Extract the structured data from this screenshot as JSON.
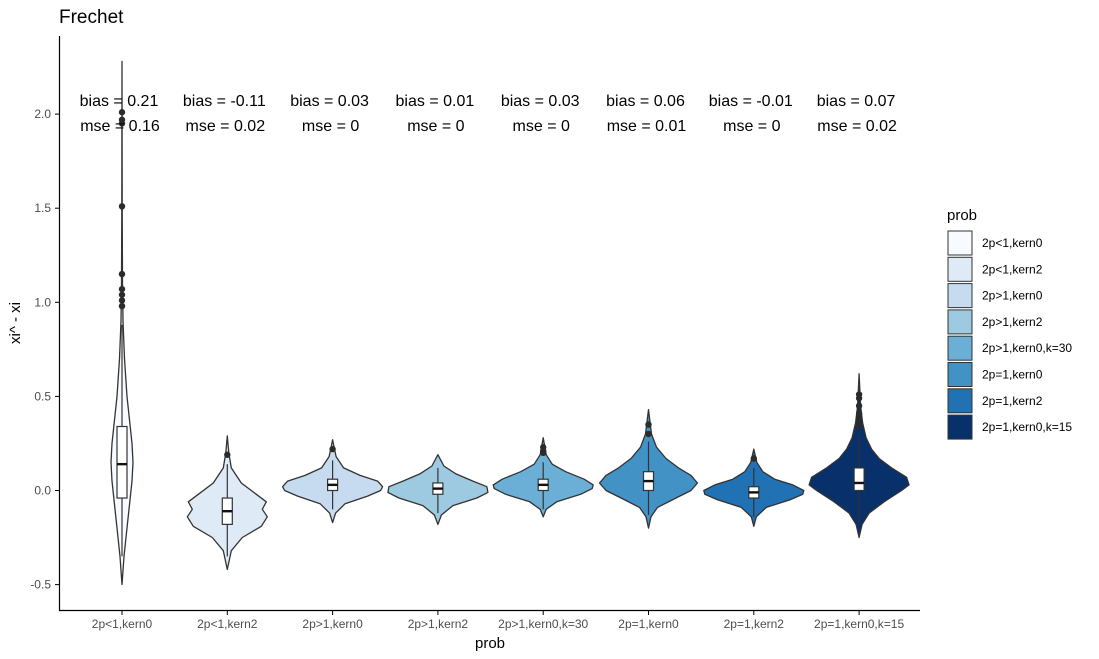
{
  "chart_data": {
    "type": "violin",
    "title": "Frechet",
    "xlabel": "prob",
    "ylabel": "xi^ - xi",
    "ylim": [
      -0.56,
      2.4
    ],
    "yticks": [
      -0.5,
      0.0,
      0.5,
      1.0,
      1.5,
      2.0
    ],
    "ytick_labels": [
      "-0.5",
      "0.0",
      "0.5",
      "1.0",
      "1.5",
      "2.0"
    ],
    "categories": [
      "2p<1,kern0",
      "2p<1,kern2",
      "2p>1,kern0",
      "2p>1,kern2",
      "2p>1,kern0,k=30",
      "2p=1,kern0",
      "2p=1,kern2",
      "2p=1,kern0,k=15"
    ],
    "fills": [
      "#F7FBFF",
      "#DEEBF7",
      "#C6DBEF",
      "#9ECAE1",
      "#6BAED6",
      "#4292C6",
      "#2171B5",
      "#08306B"
    ],
    "bias_labels": [
      "bias = 0.21",
      "bias = -0.11",
      "bias = 0.03",
      "bias = 0.01",
      "bias = 0.03",
      "bias = 0.06",
      "bias = -0.01",
      "bias = 0.07"
    ],
    "mse_labels": [
      "mse = 0.16",
      "mse = 0.02",
      "mse = 0",
      "mse = 0",
      "mse = 0",
      "mse = 0.01",
      "mse = 0",
      "mse = 0.02"
    ],
    "series": [
      {
        "name": "2p<1,kern0",
        "min": -0.5,
        "max": 2.28,
        "q1": -0.04,
        "median": 0.14,
        "q3": 0.34,
        "whisker_low": -0.35,
        "whisker_high": 0.88,
        "outliers": [
          0.98,
          1.01,
          1.04,
          1.07,
          1.15,
          1.51,
          1.95,
          1.97,
          2.01
        ],
        "density": [
          [
            -0.5,
            0
          ],
          [
            -0.35,
            0.04
          ],
          [
            -0.2,
            0.1
          ],
          [
            -0.05,
            0.16
          ],
          [
            0.05,
            0.2
          ],
          [
            0.15,
            0.22
          ],
          [
            0.25,
            0.2
          ],
          [
            0.35,
            0.16
          ],
          [
            0.5,
            0.1
          ],
          [
            0.7,
            0.05
          ],
          [
            0.9,
            0.02
          ],
          [
            1.1,
            0.01
          ],
          [
            1.5,
            0.004
          ],
          [
            2.28,
            0
          ]
        ]
      },
      {
        "name": "2p<1,kern2",
        "min": -0.42,
        "max": 0.29,
        "q1": -0.18,
        "median": -0.11,
        "q3": -0.04,
        "whisker_low": -0.35,
        "whisker_high": 0.14,
        "outliers": [
          0.19
        ],
        "density": [
          [
            -0.42,
            0
          ],
          [
            -0.32,
            0.08
          ],
          [
            -0.25,
            0.3
          ],
          [
            -0.19,
            0.68
          ],
          [
            -0.14,
            0.8
          ],
          [
            -0.1,
            0.7
          ],
          [
            -0.06,
            0.78
          ],
          [
            -0.02,
            0.58
          ],
          [
            0.04,
            0.28
          ],
          [
            0.12,
            0.08
          ],
          [
            0.2,
            0.03
          ],
          [
            0.29,
            0
          ]
        ]
      },
      {
        "name": "2p>1,kern0",
        "min": -0.17,
        "max": 0.27,
        "q1": 0.0,
        "median": 0.03,
        "q3": 0.06,
        "whisker_low": -0.1,
        "whisker_high": 0.16,
        "outliers": [
          0.22
        ],
        "density": [
          [
            -0.17,
            0
          ],
          [
            -0.12,
            0.06
          ],
          [
            -0.07,
            0.25
          ],
          [
            -0.03,
            0.7
          ],
          [
            0.0,
            0.96
          ],
          [
            0.02,
            1.0
          ],
          [
            0.05,
            0.9
          ],
          [
            0.08,
            0.55
          ],
          [
            0.12,
            0.22
          ],
          [
            0.18,
            0.07
          ],
          [
            0.23,
            0.03
          ],
          [
            0.27,
            0
          ]
        ]
      },
      {
        "name": "2p>1,kern2",
        "min": -0.18,
        "max": 0.19,
        "q1": -0.02,
        "median": 0.01,
        "q3": 0.04,
        "whisker_low": -0.12,
        "whisker_high": 0.12,
        "outliers": [],
        "density": [
          [
            -0.18,
            0
          ],
          [
            -0.13,
            0.07
          ],
          [
            -0.08,
            0.3
          ],
          [
            -0.04,
            0.78
          ],
          [
            -0.01,
            1.0
          ],
          [
            0.02,
            0.98
          ],
          [
            0.05,
            0.7
          ],
          [
            0.09,
            0.35
          ],
          [
            0.13,
            0.12
          ],
          [
            0.19,
            0
          ]
        ]
      },
      {
        "name": "2p>1,kern0,k=30",
        "min": -0.14,
        "max": 0.28,
        "q1": 0.0,
        "median": 0.03,
        "q3": 0.06,
        "whisker_low": -0.1,
        "whisker_high": 0.15,
        "outliers": [
          0.2,
          0.21,
          0.23
        ],
        "density": [
          [
            -0.14,
            0
          ],
          [
            -0.1,
            0.06
          ],
          [
            -0.06,
            0.27
          ],
          [
            -0.02,
            0.75
          ],
          [
            0.01,
            0.98
          ],
          [
            0.03,
            1.0
          ],
          [
            0.06,
            0.82
          ],
          [
            0.1,
            0.45
          ],
          [
            0.14,
            0.18
          ],
          [
            0.19,
            0.06
          ],
          [
            0.28,
            0
          ]
        ]
      },
      {
        "name": "2p=1,kern0",
        "min": -0.2,
        "max": 0.43,
        "q1": 0.0,
        "median": 0.05,
        "q3": 0.1,
        "whisker_low": -0.13,
        "whisker_high": 0.26,
        "outliers": [
          0.3,
          0.35
        ],
        "density": [
          [
            -0.2,
            0
          ],
          [
            -0.14,
            0.05
          ],
          [
            -0.09,
            0.18
          ],
          [
            -0.04,
            0.55
          ],
          [
            0.0,
            0.85
          ],
          [
            0.04,
            0.98
          ],
          [
            0.08,
            0.85
          ],
          [
            0.12,
            0.6
          ],
          [
            0.17,
            0.35
          ],
          [
            0.23,
            0.16
          ],
          [
            0.3,
            0.06
          ],
          [
            0.43,
            0
          ]
        ]
      },
      {
        "name": "2p=1,kern2",
        "min": -0.19,
        "max": 0.22,
        "q1": -0.04,
        "median": -0.01,
        "q3": 0.02,
        "whisker_low": -0.14,
        "whisker_high": 0.12,
        "outliers": [
          0.17
        ],
        "density": [
          [
            -0.19,
            0
          ],
          [
            -0.14,
            0.05
          ],
          [
            -0.09,
            0.25
          ],
          [
            -0.05,
            0.72
          ],
          [
            -0.02,
            0.98
          ],
          [
            0.0,
            1.0
          ],
          [
            0.03,
            0.78
          ],
          [
            0.06,
            0.42
          ],
          [
            0.1,
            0.18
          ],
          [
            0.15,
            0.06
          ],
          [
            0.22,
            0
          ]
        ]
      },
      {
        "name": "2p=1,kern0,k=15",
        "min": -0.25,
        "max": 0.62,
        "q1": 0.0,
        "median": 0.04,
        "q3": 0.12,
        "whisker_low": -0.17,
        "whisker_high": 0.3,
        "outliers": [
          0.34,
          0.37,
          0.39,
          0.41,
          0.45,
          0.49,
          0.51
        ],
        "density": [
          [
            -0.25,
            0
          ],
          [
            -0.18,
            0.06
          ],
          [
            -0.12,
            0.2
          ],
          [
            -0.06,
            0.5
          ],
          [
            0.0,
            0.85
          ],
          [
            0.03,
            1.0
          ],
          [
            0.07,
            0.95
          ],
          [
            0.12,
            0.65
          ],
          [
            0.17,
            0.4
          ],
          [
            0.22,
            0.25
          ],
          [
            0.28,
            0.14
          ],
          [
            0.36,
            0.07
          ],
          [
            0.45,
            0.03
          ],
          [
            0.62,
            0
          ]
        ]
      }
    ],
    "legend": {
      "title": "prob",
      "position": "right"
    }
  }
}
